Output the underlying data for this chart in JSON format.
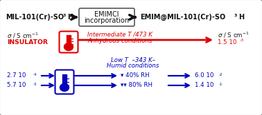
{
  "bg_color": "#ffffff",
  "border_color": "#777777",
  "box_text1": "EMIMCl",
  "box_text2": "incorporation",
  "insulator_label": "INSULATOR",
  "red_condition1": "Intermediate T /473 K",
  "red_condition2": "Anhydrous conditions",
  "red_result_base": "1.5 10",
  "red_result_exp": "-3",
  "blue_condition1": "Low T  –343 K–",
  "blue_condition2": "Humid conditions",
  "blue_val1_left_base": "2.7 10",
  "blue_val1_left_exp": "-4",
  "blue_val2_left_base": "5.7 10",
  "blue_val2_left_exp": "-3",
  "blue_rh1": "40% RH",
  "blue_rh2": "80% RH",
  "blue_val1_right_base": "6.0 10",
  "blue_val1_right_exp": "-2",
  "blue_val2_right_base": "1.4 10",
  "blue_val2_right_exp": "-1",
  "red_color": "#dd0000",
  "blue_color": "#0000bb",
  "black_color": "#111111",
  "box_border": "#555555",
  "figsize": [
    3.78,
    1.67
  ],
  "dpi": 100
}
